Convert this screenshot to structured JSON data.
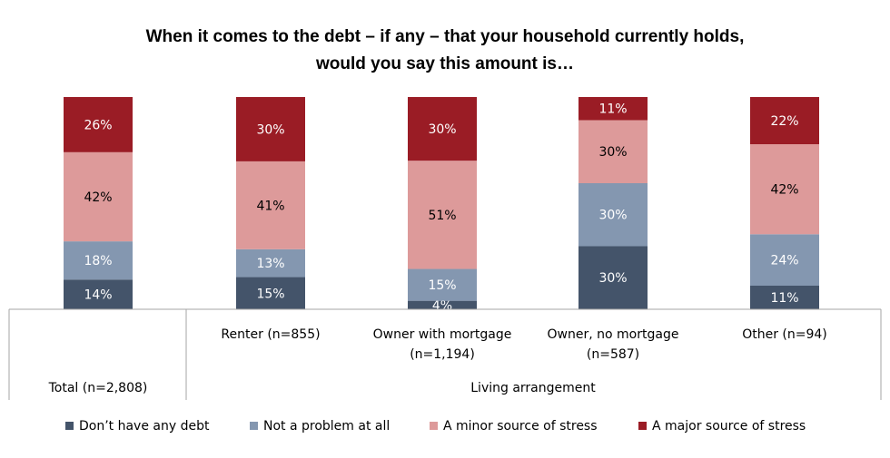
{
  "chart_data": {
    "type": "bar",
    "stacked": true,
    "percent_stacked": true,
    "title": "When it comes to the debt – if any – that your household currently holds,",
    "title_line2": "would you say this amount is…",
    "categories": [
      "Total (n=2,808)",
      "Renter (n=855)",
      "Owner with mortgage",
      "Owner, no mortgage",
      "Other (n=94)"
    ],
    "category_sublines": [
      "",
      "",
      "(n=1,194)",
      "(n=587)",
      ""
    ],
    "group_label": "Living arrangement",
    "series": [
      {
        "name": "Don’t have any debt",
        "values": [
          14,
          15,
          4,
          30,
          11
        ],
        "labels": [
          "14%",
          "15%",
          "4%",
          "30%",
          "11%"
        ],
        "color": "#44546a",
        "label_color": "#ffffff"
      },
      {
        "name": "Not a problem at all",
        "values": [
          18,
          13,
          15,
          30,
          24
        ],
        "labels": [
          "18%",
          "13%",
          "15%",
          "30%",
          "24%"
        ],
        "color": "#8497b0",
        "label_color": "#ffffff"
      },
      {
        "name": "A minor source of stress",
        "values": [
          42,
          41,
          51,
          30,
          42
        ],
        "labels": [
          "42%",
          "41%",
          "51%",
          "30%",
          "42%"
        ],
        "color": "#dd9a9a",
        "label_color": "#000000"
      },
      {
        "name": "A major source of stress",
        "values": [
          26,
          30,
          30,
          11,
          22
        ],
        "labels": [
          "26%",
          "30%",
          "30%",
          "11%",
          "22%"
        ],
        "color": "#9a1c25",
        "label_color": "#ffffff"
      }
    ],
    "ylim": [
      0,
      100
    ],
    "grid": false,
    "legend_position": "bottom"
  }
}
